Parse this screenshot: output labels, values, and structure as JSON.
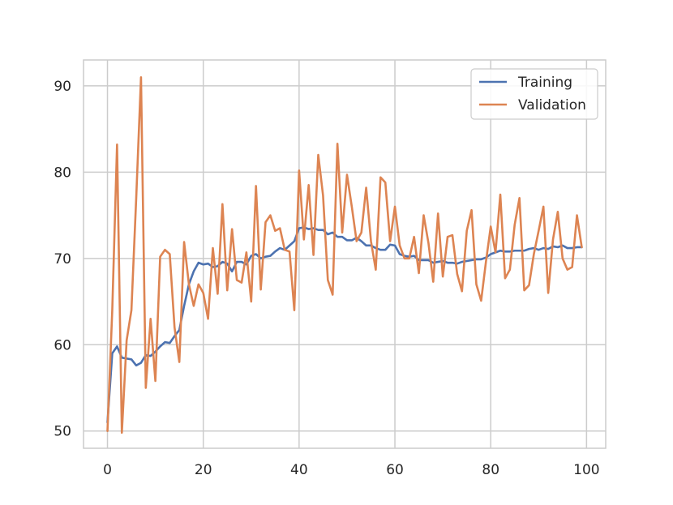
{
  "chart_data": {
    "type": "line",
    "title": "",
    "xlabel": "",
    "ylabel": "",
    "xlim": [
      -5,
      104
    ],
    "ylim": [
      48,
      93
    ],
    "xticks": [
      0,
      20,
      40,
      60,
      80,
      100
    ],
    "yticks": [
      50,
      60,
      70,
      80,
      90
    ],
    "grid": true,
    "legend_position": "top-right",
    "series": [
      {
        "name": "Training",
        "color": "#4c72b0",
        "x": [
          0,
          1,
          2,
          3,
          4,
          5,
          6,
          7,
          8,
          9,
          10,
          11,
          12,
          13,
          14,
          15,
          16,
          17,
          18,
          19,
          20,
          21,
          22,
          23,
          24,
          25,
          26,
          27,
          28,
          29,
          30,
          31,
          32,
          33,
          34,
          35,
          36,
          37,
          38,
          39,
          40,
          41,
          42,
          43,
          44,
          45,
          46,
          47,
          48,
          49,
          50,
          51,
          52,
          53,
          54,
          55,
          56,
          57,
          58,
          59,
          60,
          61,
          62,
          63,
          64,
          65,
          66,
          67,
          68,
          69,
          70,
          71,
          72,
          73,
          74,
          75,
          76,
          77,
          78,
          79,
          80,
          81,
          82,
          83,
          84,
          85,
          86,
          87,
          88,
          89,
          90,
          91,
          92,
          93,
          94,
          95,
          96,
          97,
          98,
          99
        ],
        "values": [
          51.0,
          59.0,
          59.8,
          58.5,
          58.4,
          58.3,
          57.6,
          57.9,
          58.8,
          58.7,
          59.2,
          59.8,
          60.3,
          60.2,
          61.0,
          61.7,
          64.5,
          67.0,
          68.5,
          69.5,
          69.3,
          69.4,
          69.0,
          69.1,
          69.6,
          69.4,
          68.5,
          69.6,
          69.6,
          69.3,
          70.3,
          70.5,
          70.0,
          70.2,
          70.3,
          70.8,
          71.2,
          71.0,
          71.5,
          72.0,
          73.5,
          73.6,
          73.4,
          73.5,
          73.3,
          73.3,
          72.8,
          73.0,
          72.5,
          72.5,
          72.1,
          72.1,
          72.4,
          72.0,
          71.5,
          71.5,
          71.2,
          71.0,
          71.0,
          71.6,
          71.5,
          70.5,
          70.3,
          70.2,
          70.3,
          69.8,
          69.8,
          69.8,
          69.5,
          69.6,
          69.7,
          69.5,
          69.5,
          69.4,
          69.6,
          69.7,
          69.8,
          69.9,
          69.9,
          70.1,
          70.5,
          70.7,
          70.9,
          70.8,
          70.8,
          70.9,
          70.9,
          70.9,
          71.1,
          71.2,
          71.0,
          71.2,
          71.1,
          71.4,
          71.3,
          71.5,
          71.2,
          71.2,
          71.3,
          71.3
        ]
      },
      {
        "name": "Validation",
        "color": "#dd8452",
        "x": [
          0,
          1,
          2,
          3,
          4,
          5,
          6,
          7,
          8,
          9,
          10,
          11,
          12,
          13,
          14,
          15,
          16,
          17,
          18,
          19,
          20,
          21,
          22,
          23,
          24,
          25,
          26,
          27,
          28,
          29,
          30,
          31,
          32,
          33,
          34,
          35,
          36,
          37,
          38,
          39,
          40,
          41,
          42,
          43,
          44,
          45,
          46,
          47,
          48,
          49,
          50,
          51,
          52,
          53,
          54,
          55,
          56,
          57,
          58,
          59,
          60,
          61,
          62,
          63,
          64,
          65,
          66,
          67,
          68,
          69,
          70,
          71,
          72,
          73,
          74,
          75,
          76,
          77,
          78,
          79,
          80,
          81,
          82,
          83,
          84,
          85,
          86,
          87,
          88,
          89,
          90,
          91,
          92,
          93,
          94,
          95,
          96,
          97,
          98,
          99
        ],
        "values": [
          50.0,
          64.0,
          83.2,
          49.8,
          60.5,
          64.0,
          77.0,
          91.0,
          55.0,
          63.0,
          55.8,
          70.2,
          71.0,
          70.5,
          62.0,
          58.0,
          71.9,
          67.0,
          64.5,
          67.0,
          66.0,
          63.0,
          71.2,
          65.9,
          76.3,
          66.3,
          73.4,
          67.5,
          67.2,
          70.7,
          65.0,
          78.4,
          66.4,
          74.2,
          75.0,
          73.2,
          73.5,
          71.0,
          70.8,
          64.0,
          80.2,
          72.2,
          78.5,
          70.4,
          82.0,
          77.3,
          67.5,
          65.8,
          83.3,
          73.0,
          79.7,
          76.0,
          72.0,
          73.0,
          78.2,
          72.0,
          68.7,
          79.4,
          78.8,
          72.0,
          76.0,
          71.5,
          70.0,
          70.0,
          72.5,
          68.3,
          75.0,
          71.8,
          67.3,
          75.2,
          67.9,
          72.5,
          72.7,
          68.2,
          66.2,
          73.2,
          75.6,
          67.0,
          65.1,
          69.6,
          73.7,
          70.7,
          77.4,
          67.7,
          68.7,
          73.9,
          77.0,
          66.3,
          66.9,
          70.5,
          73.2,
          76.0,
          66.0,
          72.2,
          75.4,
          70.0,
          68.7,
          69.0,
          75.0,
          71.3
        ]
      }
    ]
  }
}
